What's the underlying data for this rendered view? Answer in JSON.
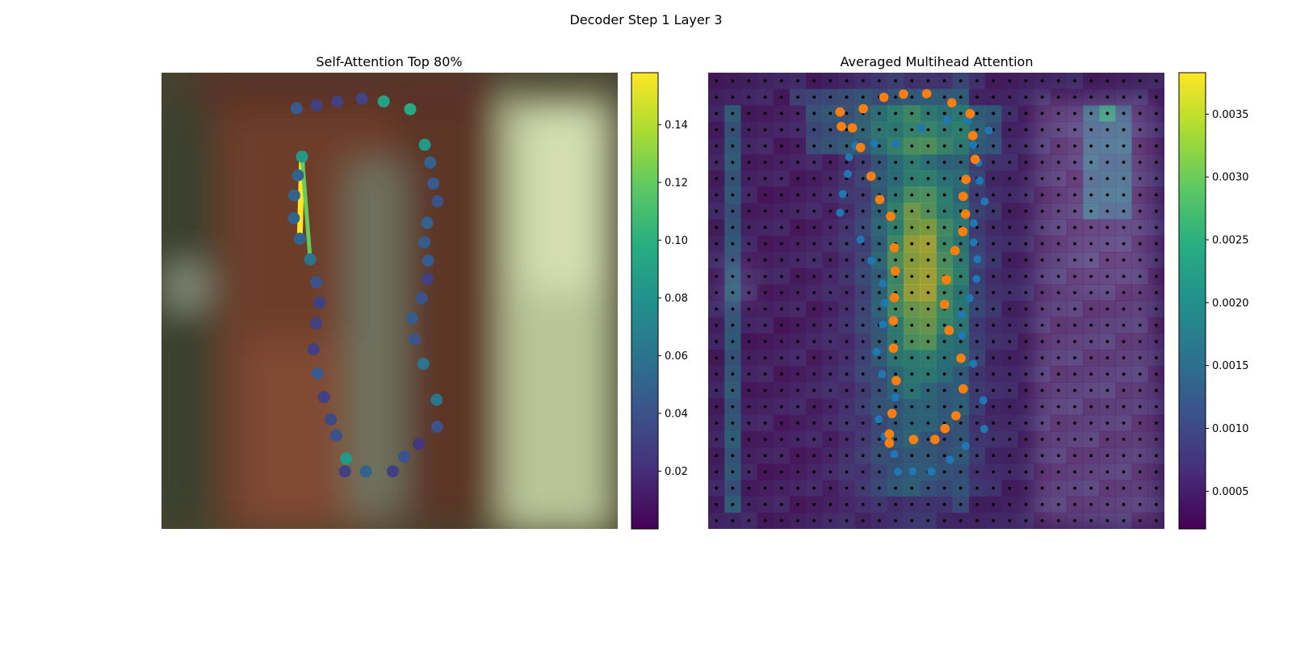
{
  "figure": {
    "title": "Decoder Step 1 Layer 3"
  },
  "chart_data": [
    {
      "type": "scatter",
      "title": "Self-Attention Top 80%",
      "background": "blurred-photo",
      "axes_visible": false,
      "xlim": [
        0,
        1
      ],
      "ylim": [
        0,
        1
      ],
      "colormap": "viridis",
      "colorbar": {
        "vmin": 0.0,
        "vmax": 0.158,
        "ticks": [
          "0.02",
          "0.04",
          "0.06",
          "0.08",
          "0.10",
          "0.12",
          "0.14"
        ],
        "tick_values": [
          0.02,
          0.04,
          0.06,
          0.08,
          0.1,
          0.12,
          0.14
        ]
      },
      "points": [
        {
          "x": 0.296,
          "y": 0.078,
          "v": 0.045
        },
        {
          "x": 0.34,
          "y": 0.072,
          "v": 0.03
        },
        {
          "x": 0.385,
          "y": 0.063,
          "v": 0.03
        },
        {
          "x": 0.439,
          "y": 0.057,
          "v": 0.032
        },
        {
          "x": 0.487,
          "y": 0.063,
          "v": 0.09
        },
        {
          "x": 0.545,
          "y": 0.08,
          "v": 0.095
        },
        {
          "x": 0.577,
          "y": 0.158,
          "v": 0.085
        },
        {
          "x": 0.589,
          "y": 0.197,
          "v": 0.05
        },
        {
          "x": 0.596,
          "y": 0.243,
          "v": 0.045
        },
        {
          "x": 0.605,
          "y": 0.282,
          "v": 0.04
        },
        {
          "x": 0.582,
          "y": 0.329,
          "v": 0.05
        },
        {
          "x": 0.576,
          "y": 0.372,
          "v": 0.045
        },
        {
          "x": 0.584,
          "y": 0.412,
          "v": 0.045
        },
        {
          "x": 0.583,
          "y": 0.452,
          "v": 0.03
        },
        {
          "x": 0.57,
          "y": 0.494,
          "v": 0.04
        },
        {
          "x": 0.549,
          "y": 0.538,
          "v": 0.045
        },
        {
          "x": 0.555,
          "y": 0.584,
          "v": 0.04
        },
        {
          "x": 0.574,
          "y": 0.638,
          "v": 0.06
        },
        {
          "x": 0.603,
          "y": 0.717,
          "v": 0.06
        },
        {
          "x": 0.604,
          "y": 0.776,
          "v": 0.04
        },
        {
          "x": 0.564,
          "y": 0.814,
          "v": 0.025
        },
        {
          "x": 0.532,
          "y": 0.842,
          "v": 0.04
        },
        {
          "x": 0.507,
          "y": 0.874,
          "v": 0.03
        },
        {
          "x": 0.448,
          "y": 0.874,
          "v": 0.05
        },
        {
          "x": 0.402,
          "y": 0.874,
          "v": 0.03
        },
        {
          "x": 0.405,
          "y": 0.846,
          "v": 0.085
        },
        {
          "x": 0.383,
          "y": 0.795,
          "v": 0.04
        },
        {
          "x": 0.371,
          "y": 0.76,
          "v": 0.035
        },
        {
          "x": 0.356,
          "y": 0.711,
          "v": 0.03
        },
        {
          "x": 0.342,
          "y": 0.659,
          "v": 0.045
        },
        {
          "x": 0.333,
          "y": 0.606,
          "v": 0.03
        },
        {
          "x": 0.339,
          "y": 0.549,
          "v": 0.03
        },
        {
          "x": 0.346,
          "y": 0.504,
          "v": 0.03
        },
        {
          "x": 0.339,
          "y": 0.459,
          "v": 0.04
        },
        {
          "x": 0.326,
          "y": 0.409,
          "v": 0.06
        },
        {
          "x": 0.303,
          "y": 0.364,
          "v": 0.05
        },
        {
          "x": 0.29,
          "y": 0.319,
          "v": 0.05
        },
        {
          "x": 0.291,
          "y": 0.269,
          "v": 0.05
        },
        {
          "x": 0.299,
          "y": 0.225,
          "v": 0.05
        },
        {
          "x": 0.308,
          "y": 0.184,
          "v": 0.085
        }
      ],
      "attention_links": [
        {
          "from": [
            0.303,
            0.364
          ],
          "to": [
            0.308,
            0.184
          ],
          "v": 0.158
        },
        {
          "from": [
            0.308,
            0.184
          ],
          "to": [
            0.326,
            0.409
          ],
          "v": 0.12
        }
      ]
    },
    {
      "type": "heatmap",
      "title": "Averaged Multihead Attention",
      "background": "heatmap-over-photo",
      "axes_visible": false,
      "colormap": "viridis",
      "grid": {
        "cols": 28,
        "rows": 28
      },
      "colorbar": {
        "vmin": 0.0002,
        "vmax": 0.00383,
        "ticks": [
          "0.0005",
          "0.0010",
          "0.0015",
          "0.0020",
          "0.0025",
          "0.0030",
          "0.0035"
        ],
        "tick_values": [
          0.0005,
          0.001,
          0.0015,
          0.002,
          0.0025,
          0.003,
          0.0035
        ]
      },
      "series": [
        {
          "color": "#1f77b4",
          "points": [
            [
              0.411,
              0.155
            ],
            [
              0.467,
              0.122
            ],
            [
              0.524,
              0.104
            ],
            [
              0.569,
              0.104
            ],
            [
              0.615,
              0.127
            ],
            [
              0.581,
              0.158
            ],
            [
              0.289,
              0.307
            ],
            [
              0.295,
              0.266
            ],
            [
              0.306,
              0.222
            ],
            [
              0.309,
              0.185
            ],
            [
              0.323,
              0.16
            ],
            [
              0.364,
              0.155
            ],
            [
              0.334,
              0.366
            ],
            [
              0.358,
              0.412
            ],
            [
              0.383,
              0.462
            ],
            [
              0.387,
              0.505
            ],
            [
              0.383,
              0.552
            ],
            [
              0.369,
              0.612
            ],
            [
              0.381,
              0.661
            ],
            [
              0.41,
              0.712
            ],
            [
              0.374,
              0.76
            ],
            [
              0.387,
              0.797
            ],
            [
              0.408,
              0.836
            ],
            [
              0.416,
              0.875
            ],
            [
              0.448,
              0.874
            ],
            [
              0.489,
              0.874
            ],
            [
              0.53,
              0.848
            ],
            [
              0.564,
              0.818
            ],
            [
              0.605,
              0.781
            ],
            [
              0.603,
              0.718
            ],
            [
              0.581,
              0.638
            ],
            [
              0.556,
              0.576
            ],
            [
              0.555,
              0.53
            ],
            [
              0.573,
              0.494
            ],
            [
              0.588,
              0.452
            ],
            [
              0.59,
              0.409
            ],
            [
              0.582,
              0.372
            ],
            [
              0.582,
              0.33
            ],
            [
              0.606,
              0.282
            ],
            [
              0.595,
              0.237
            ],
            [
              0.592,
              0.197
            ]
          ]
        },
        {
          "color": "#ff7f0e",
          "points": [
            [
              0.292,
              0.118
            ],
            [
              0.34,
              0.079
            ],
            [
              0.385,
              0.054
            ],
            [
              0.428,
              0.047
            ],
            [
              0.479,
              0.046
            ],
            [
              0.534,
              0.066
            ],
            [
              0.574,
              0.09
            ],
            [
              0.58,
              0.138
            ],
            [
              0.585,
              0.19
            ],
            [
              0.565,
              0.234
            ],
            [
              0.559,
              0.271
            ],
            [
              0.564,
              0.31
            ],
            [
              0.558,
              0.348
            ],
            [
              0.541,
              0.39
            ],
            [
              0.522,
              0.454
            ],
            [
              0.518,
              0.508
            ],
            [
              0.528,
              0.565
            ],
            [
              0.554,
              0.626
            ],
            [
              0.559,
              0.693
            ],
            [
              0.543,
              0.752
            ],
            [
              0.519,
              0.78
            ],
            [
              0.497,
              0.804
            ],
            [
              0.45,
              0.804
            ],
            [
              0.397,
              0.812
            ],
            [
              0.397,
              0.792
            ],
            [
              0.403,
              0.747
            ],
            [
              0.412,
              0.675
            ],
            [
              0.406,
              0.604
            ],
            [
              0.406,
              0.544
            ],
            [
              0.408,
              0.493
            ],
            [
              0.41,
              0.435
            ],
            [
              0.408,
              0.384
            ],
            [
              0.4,
              0.315
            ],
            [
              0.376,
              0.278
            ],
            [
              0.357,
              0.227
            ],
            [
              0.334,
              0.164
            ],
            [
              0.316,
              0.121
            ],
            [
              0.289,
              0.086
            ]
          ]
        }
      ]
    }
  ]
}
